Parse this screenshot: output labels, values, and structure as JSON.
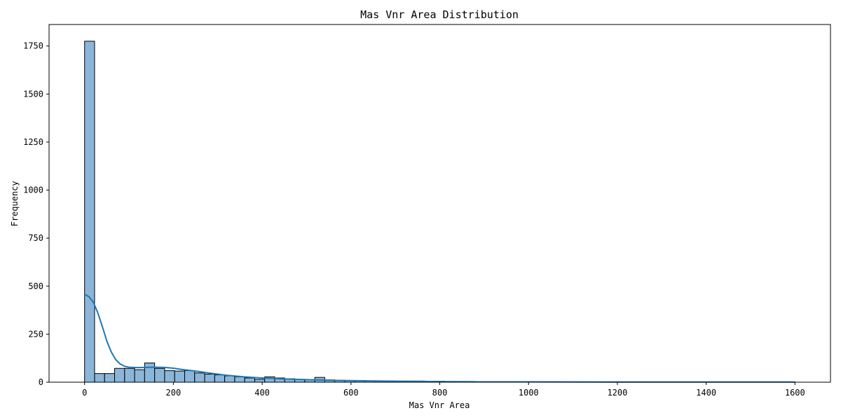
{
  "chart_data": {
    "type": "bar",
    "title": "Mas Vnr Area Distribution",
    "xlabel": "Mas Vnr Area",
    "ylabel": "Frequency",
    "xlim": [
      -80,
      1680
    ],
    "ylim": [
      0,
      1862
    ],
    "x_ticks": [
      0,
      200,
      400,
      600,
      800,
      1000,
      1200,
      1400,
      1600
    ],
    "y_ticks": [
      0,
      250,
      500,
      750,
      1000,
      1250,
      1500,
      1750
    ],
    "bin_width": 22.54,
    "bin_start": 0,
    "bins_count": [
      1775,
      45,
      45,
      72,
      72,
      65,
      100,
      72,
      60,
      58,
      60,
      48,
      42,
      38,
      33,
      28,
      22,
      15,
      28,
      22,
      18,
      15,
      12,
      25,
      12,
      10,
      8,
      8,
      7,
      7,
      7,
      6,
      6,
      6,
      5,
      5,
      4,
      4,
      4,
      3,
      3,
      3,
      3,
      3,
      3,
      2,
      2,
      2,
      2,
      2,
      2,
      2,
      2,
      2,
      2,
      2,
      1,
      1,
      1,
      1,
      1,
      1,
      1,
      1,
      1,
      1,
      1,
      1,
      1,
      1,
      1
    ],
    "kde": {
      "x": [
        0,
        10,
        20,
        30,
        40,
        50,
        60,
        70,
        80,
        90,
        100,
        120,
        140,
        160,
        180,
        200,
        220,
        250,
        280,
        320,
        360,
        400,
        450,
        500,
        550,
        600,
        700,
        800,
        900,
        1000,
        1200,
        1400,
        1600
      ],
      "y": [
        458,
        445,
        415,
        360,
        290,
        215,
        158,
        118,
        95,
        83,
        78,
        76,
        77,
        78,
        77,
        73,
        66,
        58,
        48,
        36,
        28,
        22,
        17,
        13,
        10,
        8,
        5,
        3,
        2,
        2,
        1,
        1,
        1
      ]
    },
    "colors": {
      "bar_fill": "#8bb6d9",
      "bar_edge": "#000000",
      "kde_line": "#1f77b4"
    }
  }
}
